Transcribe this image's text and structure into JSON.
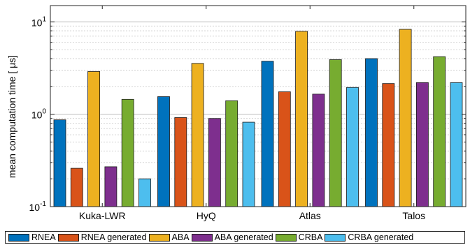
{
  "chart_data": {
    "type": "bar",
    "title": "",
    "xlabel": "",
    "ylabel": "mean computation time [ μs]",
    "yscale": "log",
    "ylim": [
      0.1,
      15
    ],
    "yticks": [
      {
        "value": 0.1,
        "base": "10",
        "exp": "-1"
      },
      {
        "value": 1,
        "base": "10",
        "exp": "0"
      },
      {
        "value": 10,
        "base": "10",
        "exp": "1"
      }
    ],
    "grid": true,
    "legend_position": "bottom",
    "categories": [
      "Kuka-LWR",
      "HyQ",
      "Atlas",
      "Talos"
    ],
    "series": [
      {
        "name": "RNEA",
        "color": "#0072BD",
        "values": [
          0.87,
          1.55,
          3.75,
          4.0
        ]
      },
      {
        "name": "RNEA generated",
        "color": "#D95319",
        "values": [
          0.26,
          0.92,
          1.75,
          2.15
        ]
      },
      {
        "name": "ABA",
        "color": "#EDB120",
        "values": [
          2.9,
          3.55,
          7.9,
          8.3
        ]
      },
      {
        "name": "ABA generated",
        "color": "#7E2F8E",
        "values": [
          0.27,
          0.9,
          1.65,
          2.2
        ]
      },
      {
        "name": "CRBA",
        "color": "#77AC30",
        "values": [
          1.45,
          1.4,
          3.9,
          4.2
        ]
      },
      {
        "name": "CRBA generated",
        "color": "#4DBEEE",
        "values": [
          0.2,
          0.82,
          1.95,
          2.2
        ]
      }
    ]
  }
}
